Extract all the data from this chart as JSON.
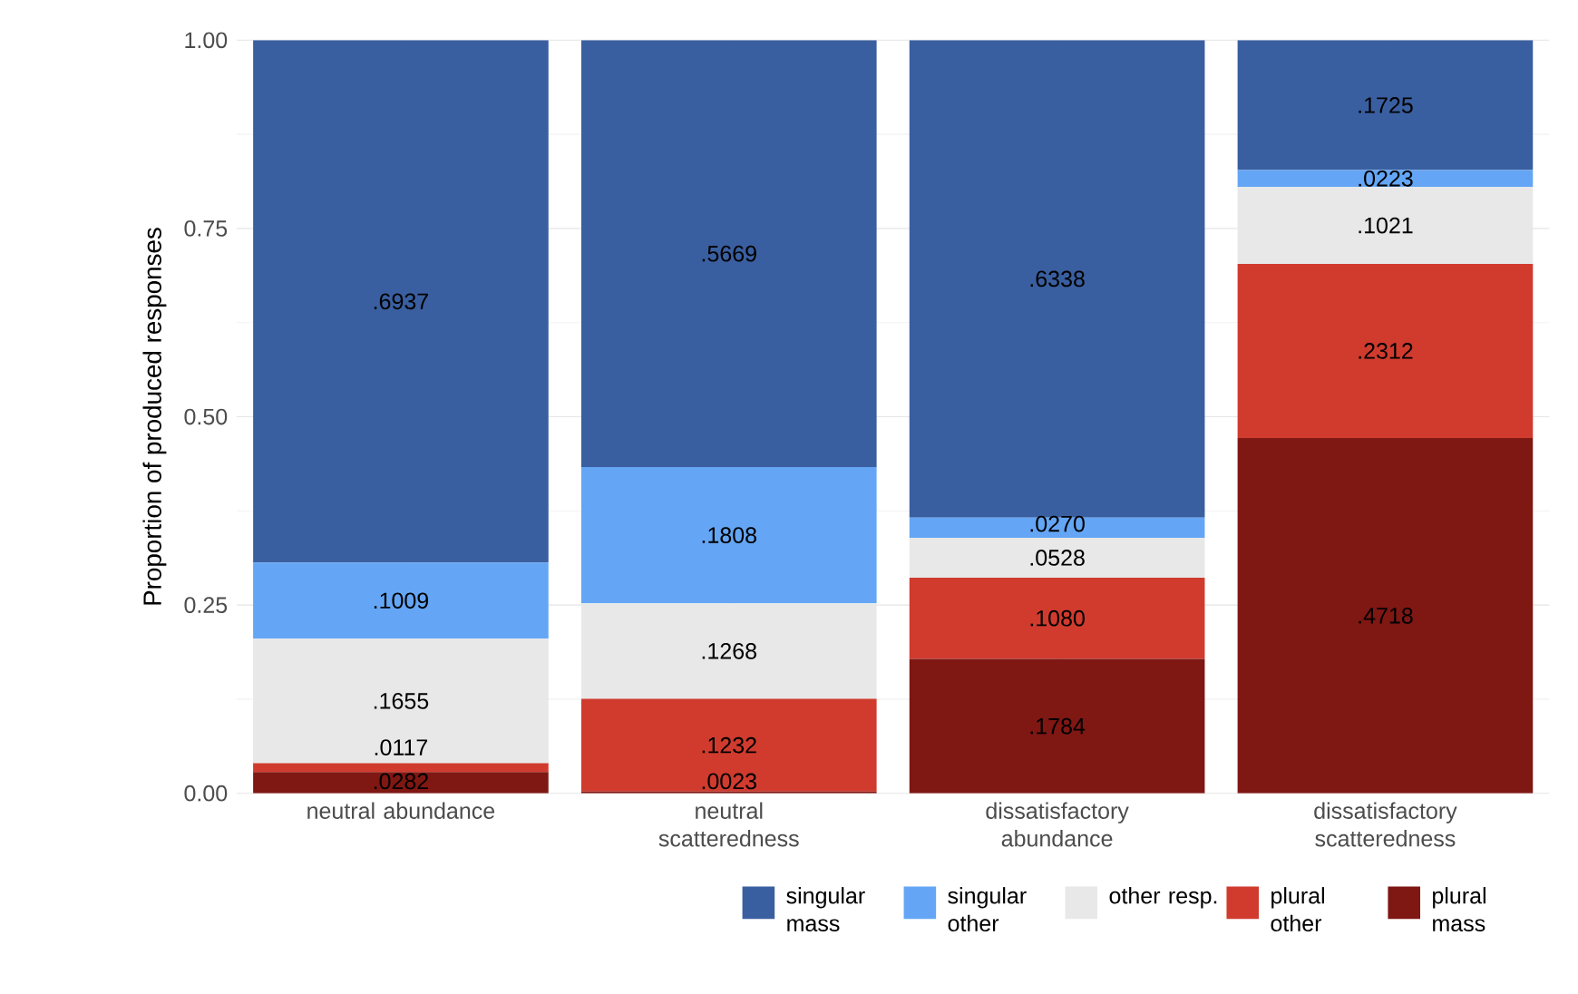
{
  "chart_data": {
    "type": "bar",
    "stacked": true,
    "ylabel": "Proportion of produced responses",
    "categories": [
      "neutral abundance",
      "neutral scatteredness",
      "dissatisfactory abundance",
      "dissatisfactory scatteredness"
    ],
    "series": [
      {
        "name": "plural mass",
        "color": "#7f1713",
        "values": [
          0.0282,
          0.0023,
          0.1784,
          0.4718
        ],
        "value_labels": [
          ".0282",
          ".0023",
          ".1784",
          ".4718"
        ]
      },
      {
        "name": "plural other",
        "color": "#d03b2e",
        "values": [
          0.0117,
          0.1232,
          0.108,
          0.2312
        ],
        "value_labels": [
          ".0117",
          ".1232",
          ".1080",
          ".2312"
        ]
      },
      {
        "name": "other resp.",
        "color": "#e8e8e8",
        "values": [
          0.1655,
          0.1268,
          0.0528,
          0.1021
        ],
        "value_labels": [
          ".1655",
          ".1268",
          ".0528",
          ".1021"
        ]
      },
      {
        "name": "singular other",
        "color": "#64a6f5",
        "values": [
          0.1009,
          0.1808,
          0.027,
          0.0223
        ],
        "value_labels": [
          ".1009",
          ".1808",
          ".0270",
          ".0223"
        ]
      },
      {
        "name": "singular mass",
        "color": "#3a5fa0",
        "values": [
          0.6937,
          0.5669,
          0.6338,
          0.1725
        ],
        "value_labels": [
          ".6937",
          ".5669",
          ".6338",
          ".1725"
        ]
      }
    ],
    "ylim": [
      0,
      1
    ],
    "yticks": [
      {
        "value": 0,
        "label": "0.00"
      },
      {
        "value": 0.25,
        "label": "0.25"
      },
      {
        "value": 0.5,
        "label": "0.50"
      },
      {
        "value": 0.75,
        "label": "0.75"
      },
      {
        "value": 1,
        "label": "1.00"
      }
    ],
    "grid": true,
    "legend": "bottom right"
  }
}
